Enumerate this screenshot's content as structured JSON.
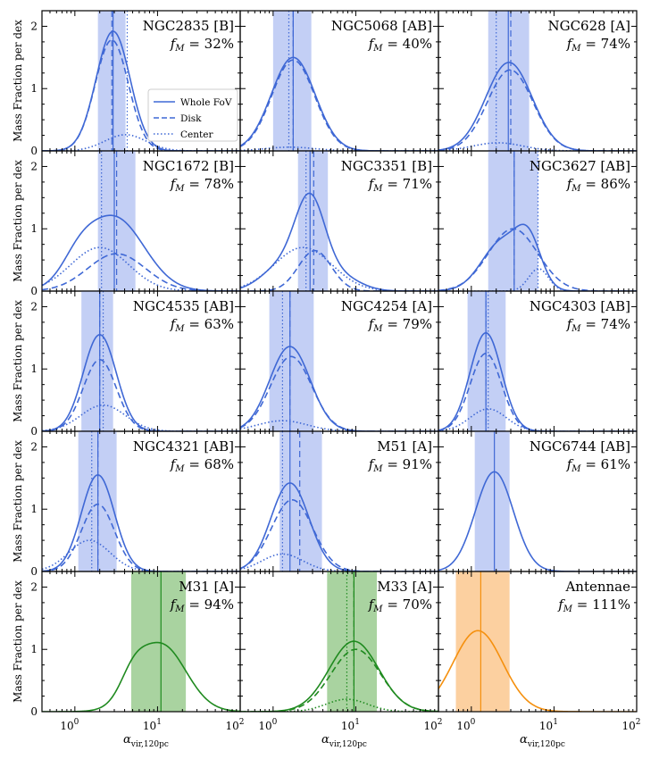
{
  "chart_data": {
    "type": "line",
    "xscale": "log",
    "xlim": [
      0.4,
      100
    ],
    "ylim": [
      0,
      2.25
    ],
    "ylabel": "Mass Fraction per dex",
    "xlabel": "α",
    "xlabel_sub": "vir,120pc",
    "xticks": [
      "10",
      "10",
      "10"
    ],
    "xtick_exps": [
      "0",
      "1",
      "2"
    ],
    "xtick_values": [
      1,
      10,
      100
    ],
    "yticks": [
      "0",
      "1",
      "2"
    ],
    "ytick_values": [
      0,
      1,
      2
    ],
    "fm_prefix": "f",
    "fm_sub": "M",
    "legend": {
      "position": "panel-1 middle-right",
      "entries": [
        {
          "label": "Whole FoV",
          "style": "solid"
        },
        {
          "label": "Disk",
          "style": "dashed"
        },
        {
          "label": "Center",
          "style": "dotted"
        }
      ]
    },
    "panels": [
      {
        "name": "NGC2835 [B]",
        "fm": "= 32%",
        "color": "#3f68d5",
        "band": "#c3cff5",
        "range": [
          1.9,
          4.1
        ],
        "vlines": {
          "whole": 2.9,
          "disk": 2.8,
          "center": 4.3
        },
        "series": {
          "whole": {
            "mu": 2.9,
            "s": 0.205,
            "a": 1.92
          },
          "disk": {
            "mu": 2.8,
            "s": 0.2,
            "a": 1.78
          },
          "center": {
            "mu": 4.1,
            "s": 0.25,
            "a": 0.26
          }
        }
      },
      {
        "name": "NGC5068 [AB]",
        "fm": "= 40%",
        "color": "#3f68d5",
        "band": "#c3cff5",
        "range": [
          1.0,
          2.9
        ],
        "vlines": {
          "whole": 1.75,
          "disk": 1.75,
          "center": 1.55
        },
        "series": {
          "whole": {
            "mu": 1.75,
            "s": 0.265,
            "a": 1.5
          },
          "disk": {
            "mu": 1.75,
            "s": 0.26,
            "a": 1.46
          },
          "center": {
            "mu": 1.6,
            "s": 0.3,
            "a": 0.06
          }
        }
      },
      {
        "name": "NGC628 [A]",
        "fm": "= 74%",
        "color": "#3f68d5",
        "band": "#c3cff5",
        "range": [
          1.6,
          5.0
        ],
        "vlines": {
          "whole": 2.8,
          "disk": 3.0,
          "center": 2.0
        },
        "series": {
          "whole": {
            "mu": 2.85,
            "s": 0.28,
            "a": 1.42
          },
          "disk": {
            "mu": 2.95,
            "s": 0.275,
            "a": 1.3
          },
          "center": {
            "mu": 2.1,
            "s": 0.3,
            "a": 0.13
          }
        }
      },
      {
        "name": "NGC1672 [B]",
        "fm": "= 78%",
        "color": "#3f68d5",
        "band": "#c3cff5",
        "range": [
          1.9,
          5.4
        ],
        "vlines": {
          "whole": 3.0,
          "disk": 3.2,
          "center": 2.1
        },
        "series": {
          "whole": {
            "mu": 3.0,
            "s": 0.36,
            "a": 1.18,
            "comps": [
              {
                "mu": 1.1,
                "s": 0.2,
                "a": 0.3
              }
            ]
          },
          "disk": {
            "mu": 3.2,
            "s": 0.35,
            "a": 0.6
          },
          "center": {
            "mu": 2.0,
            "s": 0.35,
            "a": 0.7
          }
        }
      },
      {
        "name": "NGC3351 [B]",
        "fm": "= 71%",
        "color": "#3f68d5",
        "band": "#c3cff5",
        "range": [
          2.0,
          4.6
        ],
        "vlines": {
          "whole": 2.8,
          "disk": 3.1,
          "center": 2.5
        },
        "series": {
          "whole": {
            "mu": 2.8,
            "s": 0.18,
            "a": 1.3,
            "comps": [
              {
                "mu": 1.3,
                "s": 0.25,
                "a": 0.4
              },
              {
                "mu": 6.0,
                "s": 0.25,
                "a": 0.25
              }
            ]
          },
          "disk": {
            "mu": 3.2,
            "s": 0.2,
            "a": 0.65
          },
          "center": {
            "mu": 2.3,
            "s": 0.35,
            "a": 0.7
          }
        }
      },
      {
        "name": "NGC3627 [AB]",
        "fm": "= 86%",
        "color": "#3f68d5",
        "band": "#c3cff5",
        "range": [
          1.6,
          6.4
        ],
        "vlines": {
          "whole": 3.3,
          "disk": 3.3,
          "center": 6.4
        },
        "series": {
          "whole": {
            "mu": 2.4,
            "s": 0.25,
            "a": 0.8,
            "comps": [
              {
                "mu": 5.0,
                "s": 0.15,
                "a": 0.65
              }
            ]
          },
          "disk": {
            "mu": 3.2,
            "s": 0.3,
            "a": 1.0
          },
          "center": {
            "mu": 6.5,
            "s": 0.12,
            "a": 0.36
          }
        }
      },
      {
        "name": "NGC4535 [AB]",
        "fm": "= 63%",
        "color": "#3f68d5",
        "band": "#c3cff5",
        "range": [
          1.2,
          2.9
        ],
        "vlines": {
          "whole": 2.0,
          "disk": 2.0,
          "center": 2.2
        },
        "series": {
          "whole": {
            "mu": 2.0,
            "s": 0.2,
            "a": 1.55
          },
          "disk": {
            "mu": 2.0,
            "s": 0.2,
            "a": 1.15
          },
          "center": {
            "mu": 2.2,
            "s": 0.27,
            "a": 0.42
          }
        }
      },
      {
        "name": "NGC4254 [A]",
        "fm": "= 79%",
        "color": "#3f68d5",
        "band": "#c3cff5",
        "range": [
          0.9,
          3.1
        ],
        "vlines": {
          "whole": 1.6,
          "disk": 1.6,
          "center": 1.3
        },
        "series": {
          "whole": {
            "mu": 1.6,
            "s": 0.245,
            "a": 1.36
          },
          "disk": {
            "mu": 1.65,
            "s": 0.25,
            "a": 1.2
          },
          "center": {
            "mu": 1.3,
            "s": 0.3,
            "a": 0.17
          }
        }
      },
      {
        "name": "NGC4303 [AB]",
        "fm": "= 74%",
        "color": "#3f68d5",
        "band": "#c3cff5",
        "range": [
          0.9,
          2.6
        ],
        "vlines": {
          "whole": 1.5,
          "disk": 1.5,
          "center": 1.6
        },
        "series": {
          "whole": {
            "mu": 1.5,
            "s": 0.19,
            "a": 1.58
          },
          "disk": {
            "mu": 1.5,
            "s": 0.19,
            "a": 1.25
          },
          "center": {
            "mu": 1.6,
            "s": 0.22,
            "a": 0.36
          }
        }
      },
      {
        "name": "NGC4321 [AB]",
        "fm": "= 68%",
        "color": "#3f68d5",
        "band": "#c3cff5",
        "range": [
          1.1,
          3.2
        ],
        "vlines": {
          "whole": 1.9,
          "disk": 1.9,
          "center": 1.6
        },
        "series": {
          "whole": {
            "mu": 1.9,
            "s": 0.2,
            "a": 1.55
          },
          "disk": {
            "mu": 1.9,
            "s": 0.2,
            "a": 1.08
          },
          "center": {
            "mu": 1.5,
            "s": 0.25,
            "a": 0.5
          }
        }
      },
      {
        "name": "M51 [A]",
        "fm": "= 91%",
        "color": "#3f68d5",
        "band": "#c3cff5",
        "range": [
          1.2,
          3.9
        ],
        "vlines": {
          "whole": 1.6,
          "disk": 2.1,
          "center": 1.3
        },
        "series": {
          "whole": {
            "mu": 1.6,
            "s": 0.23,
            "a": 1.42
          },
          "disk": {
            "mu": 1.7,
            "s": 0.25,
            "a": 1.15
          },
          "center": {
            "mu": 1.3,
            "s": 0.25,
            "a": 0.28
          }
        }
      },
      {
        "name": "NGC6744 [AB]",
        "fm": "= 61%",
        "color": "#3f68d5",
        "band": "#c3cff5",
        "range": [
          1.1,
          2.9
        ],
        "vlines": {
          "whole": 1.9
        },
        "series": {
          "whole": {
            "mu": 1.9,
            "s": 0.23,
            "a": 1.6
          }
        }
      },
      {
        "name": "M31 [A]",
        "fm": "= 94%",
        "color": "#1f8a1f",
        "band": "#a9d3a0",
        "range": [
          4.8,
          22.0
        ],
        "vlines": {
          "whole": 11.0
        },
        "series": {
          "whole": {
            "mu": 11.0,
            "s": 0.3,
            "a": 1.08,
            "comps": [
              {
                "mu": 5.0,
                "s": 0.15,
                "a": 0.3
              }
            ]
          }
        }
      },
      {
        "name": "M33 [A]",
        "fm": "= 70%",
        "color": "#1f8a1f",
        "band": "#a9d3a0",
        "range": [
          4.5,
          18.0
        ],
        "vlines": {
          "whole": 9.5,
          "disk": 9.5,
          "center": 7.8
        },
        "series": {
          "whole": {
            "mu": 9.5,
            "s": 0.3,
            "a": 1.13
          },
          "disk": {
            "mu": 10.0,
            "s": 0.3,
            "a": 1.0
          },
          "center": {
            "mu": 7.8,
            "s": 0.25,
            "a": 0.2
          }
        }
      },
      {
        "name": "Antennae",
        "fm": "= 111%",
        "color": "#f5900e",
        "band": "#fcd0a0",
        "range": [
          0.65,
          2.9
        ],
        "vlines": {
          "whole": 1.3
        },
        "series": {
          "whole": {
            "mu": 1.2,
            "s": 0.3,
            "a": 1.3
          }
        }
      }
    ]
  }
}
